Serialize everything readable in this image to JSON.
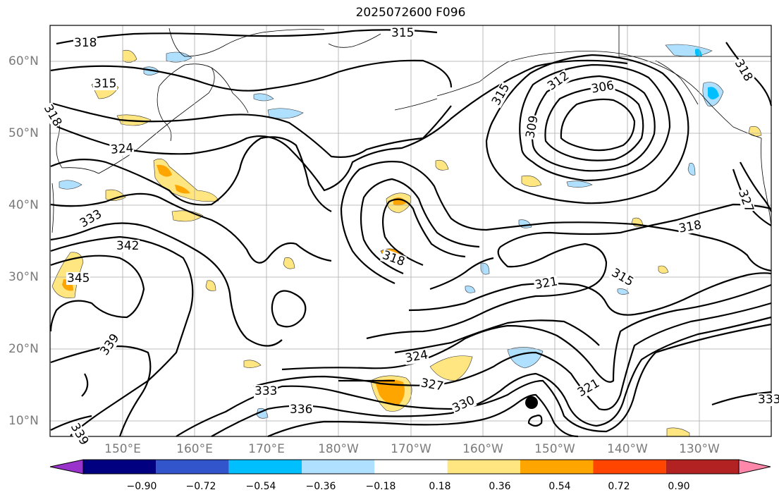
{
  "title": "2025072600 F096",
  "lat_labels": [
    "60°N",
    "50°N",
    "40°N",
    "30°N",
    "20°N",
    "10°N"
  ],
  "lon_labels": [
    "150°E",
    "160°E",
    "170°E",
    "180°W",
    "170°W",
    "160°W",
    "150°W",
    "140°W",
    "130°W"
  ],
  "contour_labels": [
    "318",
    "315",
    "318",
    "315",
    "324",
    "333",
    "342",
    "345",
    "339",
    "333",
    "336",
    "339",
    "324",
    "327",
    "330",
    "321",
    "318",
    "321",
    "315",
    "318",
    "312",
    "306",
    "309",
    "315",
    "318",
    "327",
    "333"
  ],
  "colorbar": {
    "ticks": [
      "−0.90",
      "−0.72",
      "−0.54",
      "−0.36",
      "−0.18",
      "0.18",
      "0.36",
      "0.54",
      "0.72",
      "0.90"
    ],
    "colors": [
      "#9933cc",
      "#000080",
      "#3355cc",
      "#00bfff",
      "#b0e0ff",
      "#ffffff",
      "#ffe680",
      "#ffa500",
      "#ff4500",
      "#b22222",
      "#ff88aa"
    ]
  },
  "marker": "storm-center"
}
